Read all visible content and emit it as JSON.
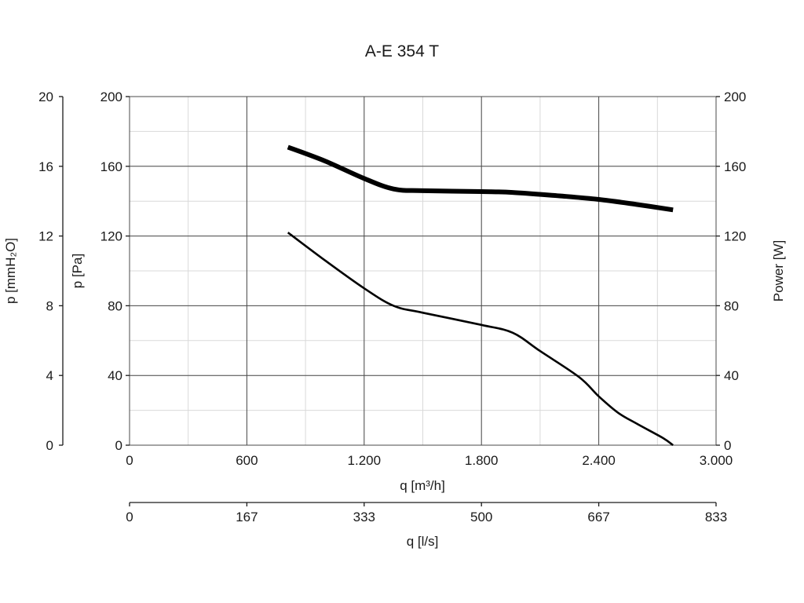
{
  "chart_data": {
    "type": "line",
    "title": "A-E 354 T",
    "x_axis": {
      "label": "q [m³/h]",
      "range": [
        0,
        3000
      ],
      "ticks": [
        0,
        600,
        1200,
        1800,
        2400,
        3000
      ],
      "tick_labels": [
        "0",
        "600",
        "1.200",
        "1.800",
        "2.400",
        "3.000"
      ]
    },
    "x2_axis": {
      "label": "q [l/s]",
      "range": [
        0,
        833
      ],
      "tick_labels": [
        "0",
        "167",
        "333",
        "500",
        "667",
        "833"
      ]
    },
    "y_axis": {
      "label": "p [Pa]",
      "range": [
        0,
        200
      ],
      "ticks": [
        0,
        40,
        80,
        120,
        160,
        200
      ],
      "tick_labels": [
        "0",
        "40",
        "80",
        "120",
        "160",
        "200"
      ]
    },
    "y_outer_axis": {
      "label": "p [mmH₂O]",
      "range": [
        0,
        20
      ],
      "tick_labels": [
        "0",
        "4",
        "8",
        "12",
        "16",
        "20"
      ]
    },
    "y_right_axis": {
      "label": "Power [W]",
      "range": [
        0,
        200
      ],
      "tick_labels": [
        "0",
        "40",
        "80",
        "120",
        "160",
        "200"
      ]
    },
    "grid": true,
    "series": [
      {
        "axis": "right",
        "line_width": "thick",
        "x": [
          810,
          1000,
          1200,
          1350,
          1500,
          1800,
          1960,
          2200,
          2400,
          2600,
          2780
        ],
        "y": [
          171,
          163,
          153,
          147,
          146,
          145.5,
          145,
          143,
          141,
          138,
          135
        ]
      },
      {
        "axis": "left",
        "line_width": "thin",
        "x": [
          810,
          1000,
          1200,
          1350,
          1500,
          1800,
          1960,
          2100,
          2300,
          2400,
          2500,
          2600,
          2730,
          2780
        ],
        "y": [
          122,
          106,
          90,
          80,
          76,
          69,
          64.5,
          54,
          39,
          28,
          18.5,
          12,
          4,
          0
        ]
      }
    ]
  }
}
